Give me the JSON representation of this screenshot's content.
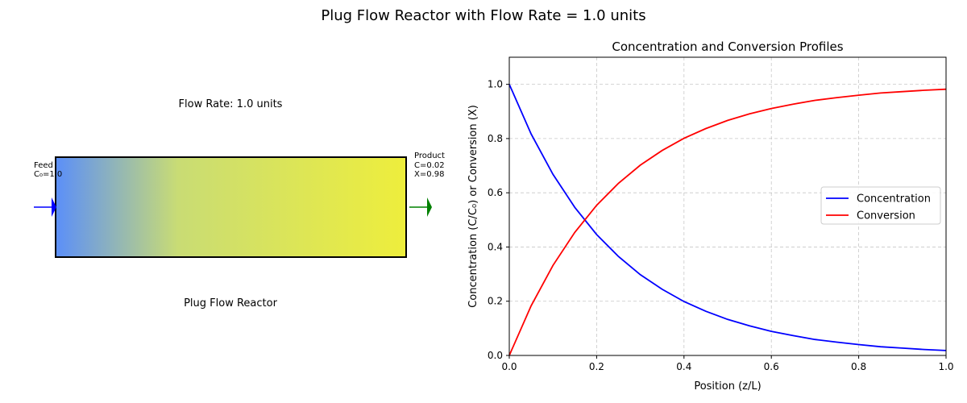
{
  "suptitle": "Plug Flow Reactor with Flow Rate = 1.0 units",
  "reactor_panel": {
    "flow_rate_label": "Flow Rate: 1.0 units",
    "reactor_label": "Plug Flow Reactor",
    "feed_label": [
      "Feed",
      "C₀=1.0"
    ],
    "product_label": [
      "Product",
      "C=0.02",
      "X=0.98"
    ],
    "gradient_start_color": "#5b8ff9",
    "gradient_end_color": "#eeee3c",
    "feed_arrow_color": "#0000ff",
    "product_arrow_color": "#008000"
  },
  "chart_data": {
    "type": "line",
    "title": "Concentration and Conversion Profiles",
    "xlabel": "Position (z/L)",
    "ylabel": "Concentration (C/C₀) or Conversion (X)",
    "xlim": [
      0,
      1
    ],
    "ylim": [
      0,
      1.1
    ],
    "xticks": [
      0.0,
      0.2,
      0.4,
      0.6,
      0.8,
      1.0
    ],
    "yticks": [
      0.0,
      0.2,
      0.4,
      0.6,
      0.8,
      1.0
    ],
    "tick_format": "0.0",
    "grid": true,
    "legend_position": "center-right",
    "x": [
      0.0,
      0.05,
      0.1,
      0.15,
      0.2,
      0.25,
      0.3,
      0.35,
      0.4,
      0.45,
      0.5,
      0.55,
      0.6,
      0.65,
      0.7,
      0.75,
      0.8,
      0.85,
      0.9,
      0.95,
      1.0
    ],
    "series": [
      {
        "name": "Concentration",
        "color": "#0000ff",
        "values": [
          1.0,
          0.817,
          0.668,
          0.546,
          0.446,
          0.365,
          0.298,
          0.244,
          0.199,
          0.163,
          0.133,
          0.109,
          0.089,
          0.073,
          0.059,
          0.049,
          0.04,
          0.032,
          0.027,
          0.022,
          0.018
        ]
      },
      {
        "name": "Conversion",
        "color": "#ff0000",
        "values": [
          0.0,
          0.183,
          0.332,
          0.454,
          0.554,
          0.635,
          0.702,
          0.756,
          0.801,
          0.837,
          0.867,
          0.891,
          0.911,
          0.927,
          0.941,
          0.951,
          0.96,
          0.968,
          0.973,
          0.978,
          0.982
        ]
      }
    ]
  }
}
